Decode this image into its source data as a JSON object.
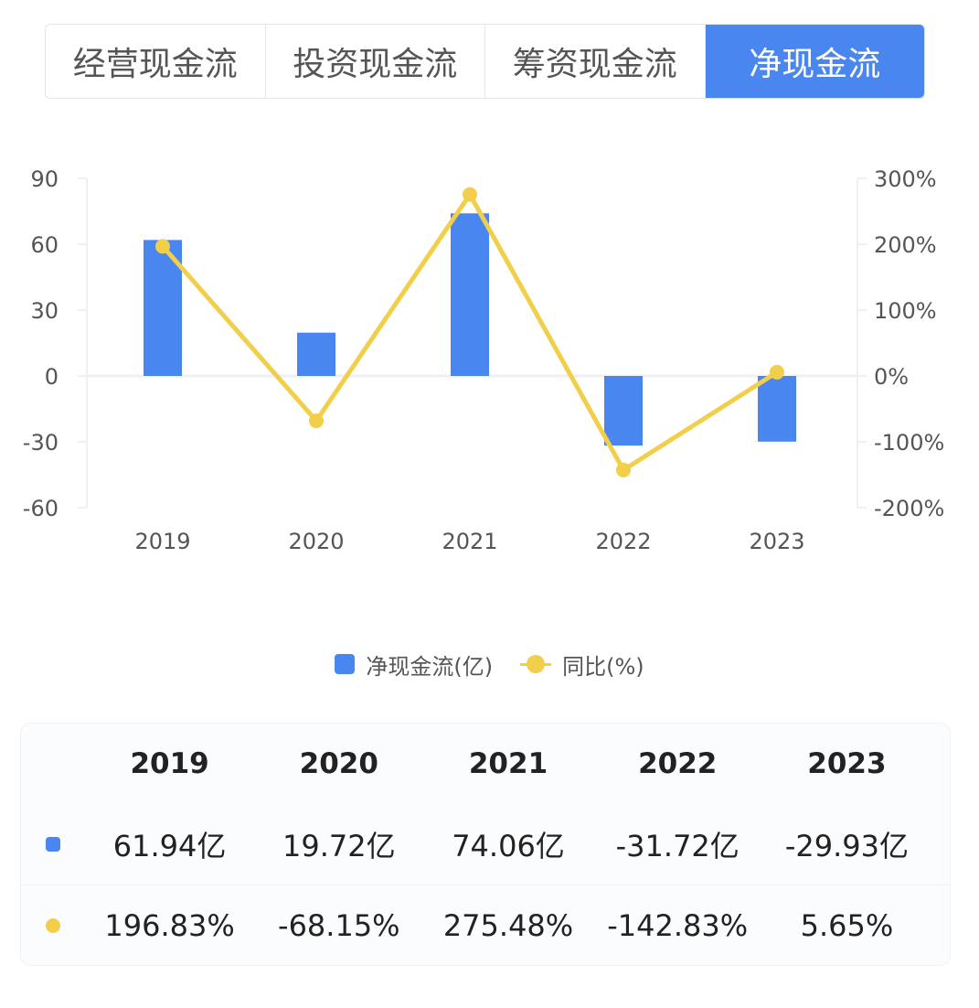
{
  "tabs": [
    {
      "label": "经营现金流",
      "active": false
    },
    {
      "label": "投资现金流",
      "active": false
    },
    {
      "label": "筹资现金流",
      "active": false
    },
    {
      "label": "净现金流",
      "active": true
    }
  ],
  "colors": {
    "bar": "#4a86f0",
    "line": "#f2cf4a",
    "grid": "#eef0f3",
    "tab_active": "#4a86f0"
  },
  "chart_data": {
    "type": "bar",
    "categories": [
      "2019",
      "2020",
      "2021",
      "2022",
      "2023"
    ],
    "series": [
      {
        "name": "净现金流(亿)",
        "type": "bar",
        "axis": "left",
        "values": [
          61.94,
          19.72,
          74.06,
          -31.72,
          -29.93
        ]
      },
      {
        "name": "同比(%)",
        "type": "line",
        "axis": "right",
        "values": [
          196.83,
          -68.15,
          275.48,
          -142.83,
          5.65
        ]
      }
    ],
    "y_left": {
      "ticks": [
        "90",
        "60",
        "30",
        "0",
        "-30",
        "-60"
      ],
      "range": [
        -60,
        90
      ]
    },
    "y_right": {
      "ticks": [
        "300%",
        "200%",
        "100%",
        "0%",
        "-100%",
        "-200%"
      ],
      "range": [
        -200,
        300
      ]
    },
    "legend_position": "bottom-center",
    "grid": false
  },
  "legend": {
    "bar_label": "净现金流(亿)",
    "line_label": "同比(%)"
  },
  "table": {
    "years": [
      "2019",
      "2020",
      "2021",
      "2022",
      "2023"
    ],
    "cash_row": [
      "61.94亿",
      "19.72亿",
      "74.06亿",
      "-31.72亿",
      "-29.93亿"
    ],
    "yoy_row": [
      "196.83%",
      "-68.15%",
      "275.48%",
      "-142.83%",
      "5.65%"
    ]
  }
}
